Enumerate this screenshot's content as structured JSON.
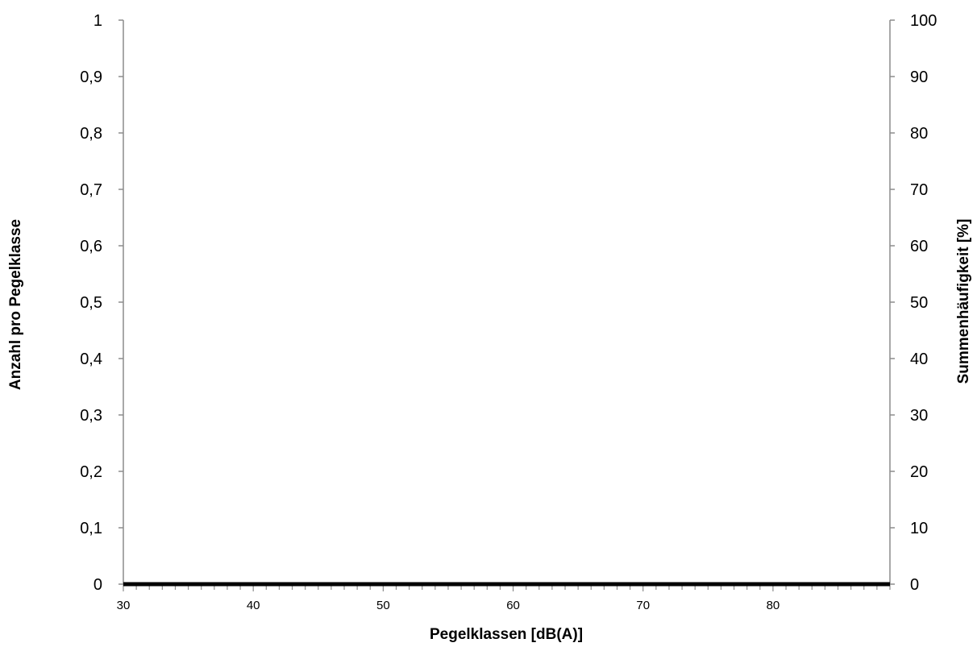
{
  "chart_data": {
    "type": "line",
    "title": "",
    "xlabel": "Pegelklassen [dB(A)]",
    "ylabel_left": "Anzahl pro Pegelklasse",
    "ylabel_right": "Summenhäufigkeit [%]",
    "xlim": [
      30,
      89
    ],
    "ylim_left": [
      0,
      1
    ],
    "ylim_right": [
      0,
      100
    ],
    "x_ticks": [
      {
        "value": 30,
        "label": "30"
      },
      {
        "value": 40,
        "label": "40"
      },
      {
        "value": 50,
        "label": "50"
      },
      {
        "value": 60,
        "label": "60"
      },
      {
        "value": 70,
        "label": "70"
      },
      {
        "value": 80,
        "label": "80"
      }
    ],
    "x_minor_step": 1,
    "y_left_ticks": [
      {
        "value": 0,
        "label": "0"
      },
      {
        "value": 0.1,
        "label": "0,1"
      },
      {
        "value": 0.2,
        "label": "0,2"
      },
      {
        "value": 0.3,
        "label": "0,3"
      },
      {
        "value": 0.4,
        "label": "0,4"
      },
      {
        "value": 0.5,
        "label": "0,5"
      },
      {
        "value": 0.6,
        "label": "0,6"
      },
      {
        "value": 0.7,
        "label": "0,7"
      },
      {
        "value": 0.8,
        "label": "0,8"
      },
      {
        "value": 0.9,
        "label": "0,9"
      },
      {
        "value": 1,
        "label": "1"
      }
    ],
    "y_right_ticks": [
      {
        "value": 0,
        "label": "0"
      },
      {
        "value": 10,
        "label": "10"
      },
      {
        "value": 20,
        "label": "20"
      },
      {
        "value": 30,
        "label": "30"
      },
      {
        "value": 40,
        "label": "40"
      },
      {
        "value": 50,
        "label": "50"
      },
      {
        "value": 60,
        "label": "60"
      },
      {
        "value": 70,
        "label": "70"
      },
      {
        "value": 80,
        "label": "80"
      },
      {
        "value": 90,
        "label": "90"
      },
      {
        "value": 100,
        "label": "100"
      }
    ],
    "series": [
      {
        "axis": "left",
        "color": "#000000",
        "x": [
          30,
          89
        ],
        "values": [
          0,
          0
        ]
      }
    ],
    "grid": false,
    "legend": "none"
  }
}
